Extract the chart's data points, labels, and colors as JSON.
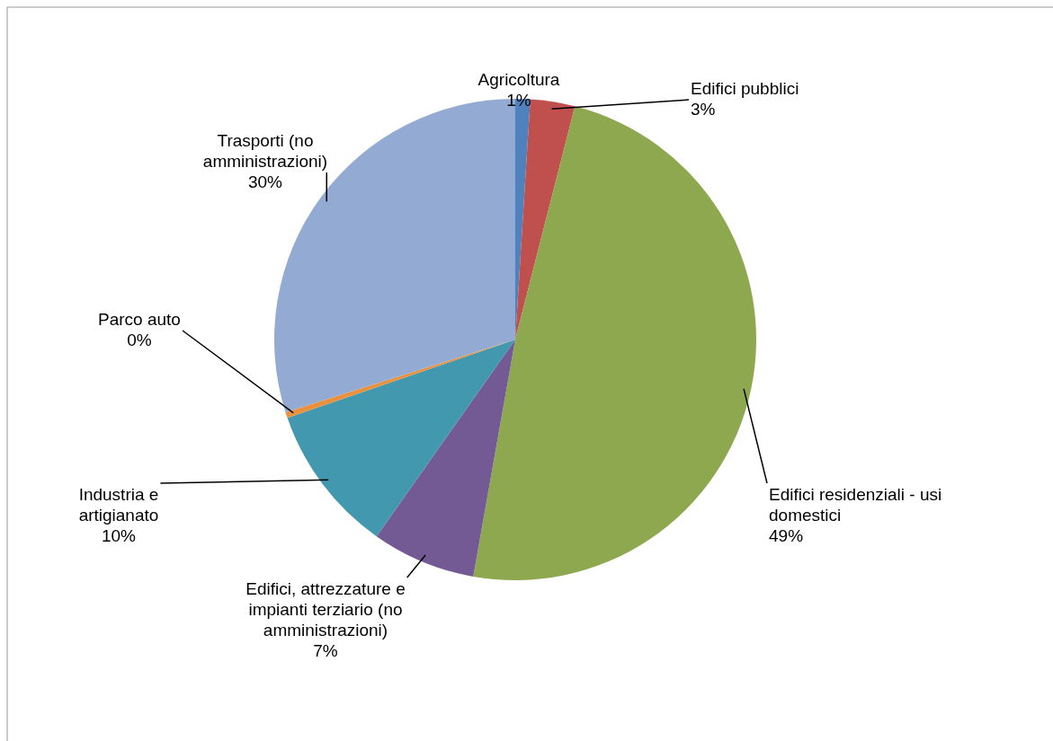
{
  "chart_data": {
    "type": "pie",
    "categories": [
      "Agricoltura",
      "Edifici pubblici",
      "Edifici residenziali - usi domestici",
      "Edifici, attrezzature e impianti terziario (no amministrazioni)",
      "Industria e artigianato",
      "Parco auto",
      "Trasporti (no amministrazioni)"
    ],
    "values": [
      1,
      3,
      49,
      7,
      10,
      0.4,
      30
    ],
    "value_labels": [
      "1%",
      "3%",
      "49%",
      "7%",
      "10%",
      "0%",
      "30%"
    ],
    "colors": [
      "#4f81bd",
      "#c0504d",
      "#8ea84f",
      "#735a94",
      "#4198af",
      "#e8913f",
      "#93aad2"
    ],
    "legend": false
  }
}
